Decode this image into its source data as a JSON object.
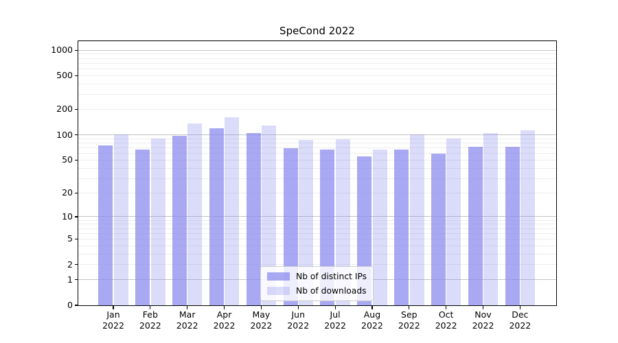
{
  "chart_data": {
    "type": "bar",
    "title": "SpeCond 2022",
    "months": [
      "Jan",
      "Feb",
      "Mar",
      "Apr",
      "May",
      "Jun",
      "Jul",
      "Aug",
      "Sep",
      "Oct",
      "Nov",
      "Dec"
    ],
    "year_label": "2022",
    "series": [
      {
        "name": "Nb of distinct IPs",
        "color": "#8888ee",
        "alpha": 0.72,
        "values": [
          75,
          67,
          97,
          120,
          105,
          70,
          67,
          55,
          67,
          60,
          72,
          72
        ]
      },
      {
        "name": "Nb of downloads",
        "color": "#8888ee",
        "alpha": 0.3,
        "values": [
          102,
          91,
          136,
          162,
          130,
          88,
          89,
          67,
          102,
          90,
          105,
          114
        ]
      }
    ],
    "yscale": "log1p",
    "ylim": [
      0,
      1280
    ],
    "y_ticks": [
      0,
      1,
      2,
      5,
      10,
      20,
      50,
      100,
      200,
      500,
      1000
    ],
    "grid": {
      "on": true,
      "major_color": "#c3c3c3",
      "minor_color": "#ededed"
    },
    "legend_position": "lower center",
    "axis_color": "#000000"
  }
}
